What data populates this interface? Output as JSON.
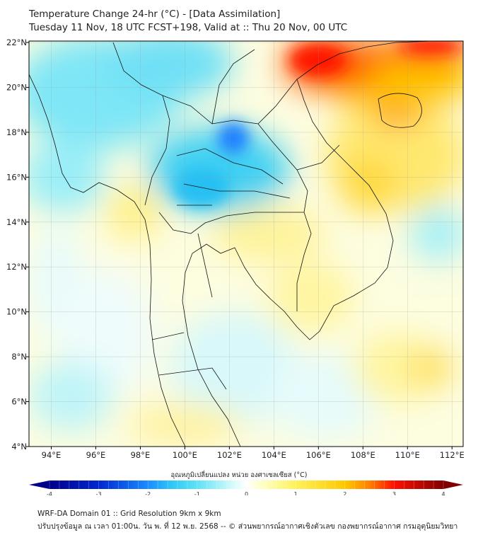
{
  "header": {
    "title": "Temperature Change 24-hr (°C) - [Data Assimilation]",
    "subtitle": "Tuesday 11 Nov, 18 UTC FCST+198, Valid at :: Thu 20 Nov, 00 UTC"
  },
  "map": {
    "lon_range": [
      93,
      112.5
    ],
    "lat_range": [
      4,
      22
    ],
    "lon_ticks": [
      {
        "v": 94,
        "label": "94°E"
      },
      {
        "v": 96,
        "label": "96°E"
      },
      {
        "v": 98,
        "label": "98°E"
      },
      {
        "v": 100,
        "label": "100°E"
      },
      {
        "v": 102,
        "label": "102°E"
      },
      {
        "v": 104,
        "label": "104°E"
      },
      {
        "v": 106,
        "label": "106°E"
      },
      {
        "v": 108,
        "label": "108°E"
      },
      {
        "v": 110,
        "label": "110°E"
      },
      {
        "v": 112,
        "label": "112°E"
      }
    ],
    "lat_ticks": [
      {
        "v": 22,
        "label": "22°N"
      },
      {
        "v": 20,
        "label": "20°N"
      },
      {
        "v": 18,
        "label": "18°N"
      },
      {
        "v": 16,
        "label": "16°N"
      },
      {
        "v": 14,
        "label": "14°N"
      },
      {
        "v": 12,
        "label": "12°N"
      },
      {
        "v": 10,
        "label": "10°N"
      },
      {
        "v": 8,
        "label": "8°N"
      },
      {
        "v": 6,
        "label": "6°N"
      },
      {
        "v": 4,
        "label": "4°N"
      }
    ]
  },
  "colorbar": {
    "label": "อุณหภูมิเปลี่ยนแปลง หน่วย องศาเซลเซียส (°C)",
    "range": [
      -4,
      4
    ],
    "ticks": [
      {
        "v": -4,
        "label": "-4"
      },
      {
        "v": -3,
        "label": "-3"
      },
      {
        "v": -2,
        "label": "-2"
      },
      {
        "v": -1,
        "label": "-1"
      },
      {
        "v": 0,
        "label": "0"
      },
      {
        "v": 1,
        "label": "1"
      },
      {
        "v": 2,
        "label": "2"
      },
      {
        "v": 3,
        "label": "3"
      },
      {
        "v": 4,
        "label": "4"
      }
    ],
    "stops": [
      [
        -4,
        "#00008b"
      ],
      [
        -3,
        "#0028d0"
      ],
      [
        -2,
        "#1a8cff"
      ],
      [
        -1.5,
        "#2fcaf5"
      ],
      [
        -1,
        "#5ee2f6"
      ],
      [
        -0.3,
        "#d2fafa"
      ],
      [
        0,
        "#ffffff"
      ],
      [
        0.3,
        "#ffffc8"
      ],
      [
        1,
        "#fff25a"
      ],
      [
        2,
        "#ffc800"
      ],
      [
        2.5,
        "#ff8000"
      ],
      [
        3,
        "#ff1000"
      ],
      [
        4,
        "#800000"
      ]
    ]
  },
  "footer": {
    "line1": "WRF-DA Domain 01 :: Grid Resolution 9km x 9km",
    "line2": "ปรับปรุงข้อมูล ณ เวลา 01:00น. วัน พ. ที่ 12 พ.ย. 2568 -- © ส่วนพยากรณ์อากาศเชิงตัวเลข กองพยากรณ์อากาศ กรมอุตุนิยมวิทยา"
  }
}
